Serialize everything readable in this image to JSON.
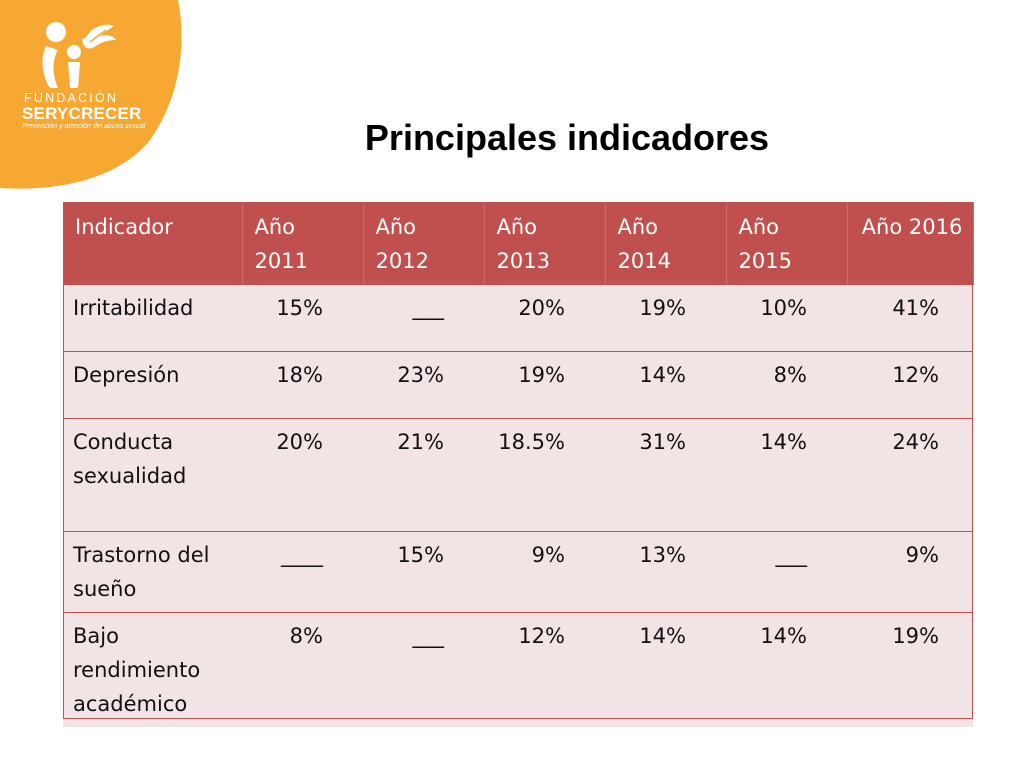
{
  "logo": {
    "foundation": "FUNDACIÓN",
    "name": "SERYCRECER",
    "tagline": "Prevención y atención del abuso sexual",
    "accent": "#f7a833"
  },
  "title": "Principales indicadores",
  "table": {
    "header_color": "#c0504d",
    "row_color": "#f2e4e4",
    "headers": [
      "Indicador",
      "Año 2011",
      "Año 2012",
      "Año 2013",
      "Año 2014",
      "Año 2015",
      "Año 2016"
    ],
    "rows": [
      {
        "label": "Irritabilidad",
        "values": [
          "15%",
          "___",
          "20%",
          "19%",
          "10%",
          "41%"
        ]
      },
      {
        "label": "Depresión",
        "values": [
          "18%",
          "23%",
          "19%",
          "14%",
          "8%",
          "12%"
        ]
      },
      {
        "label": "Conducta sexualidad",
        "values": [
          "20%",
          "21%",
          "18.5%",
          "31%",
          "14%",
          "24%"
        ]
      },
      {
        "label": "Trastorno del sueño",
        "values": [
          "____",
          "15%",
          "9%",
          "13%",
          "___",
          "9%"
        ]
      },
      {
        "label": "Bajo rendimiento académico",
        "values": [
          "8%",
          "___",
          "12%",
          "14%",
          "14%",
          "19%"
        ]
      }
    ]
  }
}
